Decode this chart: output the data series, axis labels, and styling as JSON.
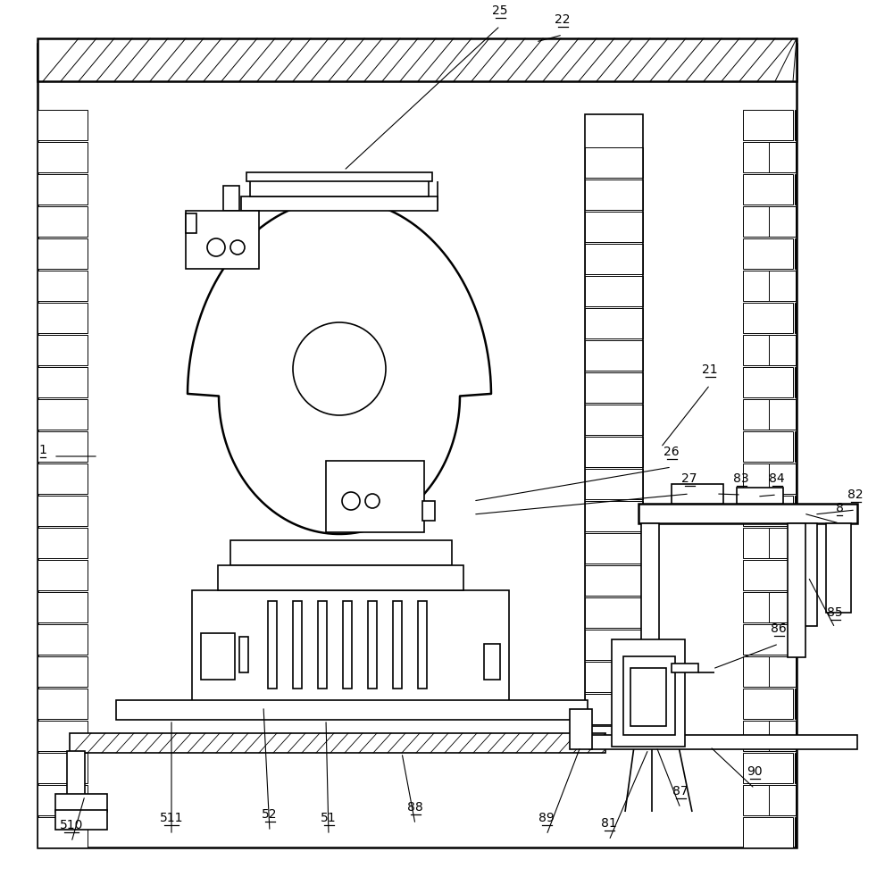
{
  "fig_width": 10.0,
  "fig_height": 9.91,
  "bg_color": "#ffffff",
  "lc": "#000000"
}
